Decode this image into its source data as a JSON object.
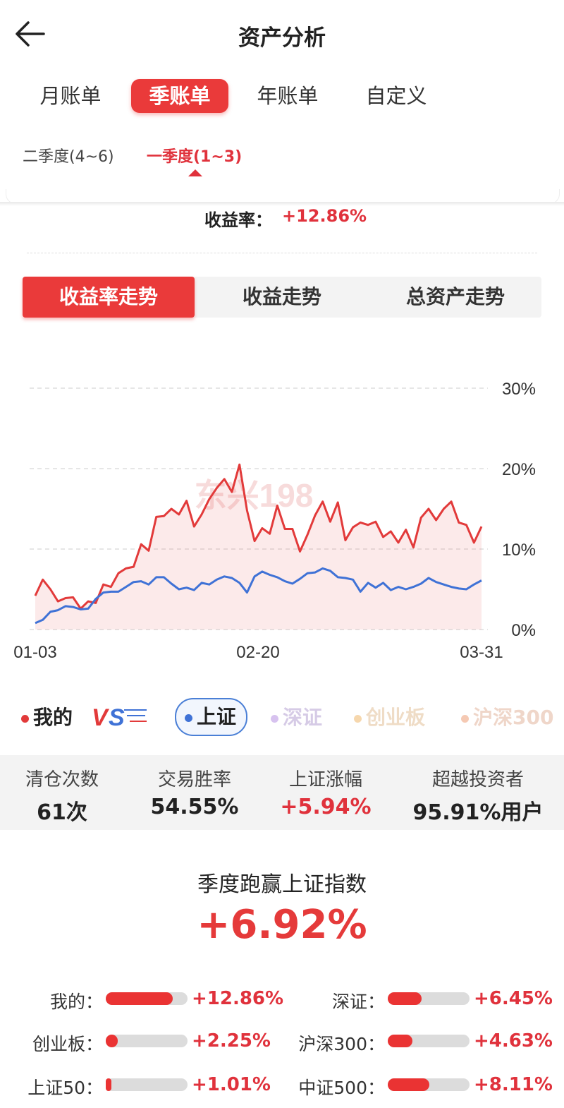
{
  "header": {
    "title": "资产分析",
    "back_icon": "arrow-left-icon"
  },
  "period_tabs": [
    {
      "label": "月账单",
      "active": false
    },
    {
      "label": "季账单",
      "active": true
    },
    {
      "label": "年账单",
      "active": false
    },
    {
      "label": "自定义",
      "active": false
    }
  ],
  "quarter_tabs": [
    {
      "label": "二季度(4~6)",
      "active": false
    },
    {
      "label": "一季度(1~3)",
      "active": true
    }
  ],
  "return_rate": {
    "label": "收益率：",
    "value": "+12.86%"
  },
  "chart_tabs": [
    {
      "label": "收益率走势",
      "active": true
    },
    {
      "label": "收益走势",
      "active": false
    },
    {
      "label": "总资产走势",
      "active": false
    }
  ],
  "chart_data": {
    "type": "line",
    "x_ticks": [
      "01-03",
      "02-20",
      "03-31"
    ],
    "y_ticks": [
      "30%",
      "20%",
      "10%",
      "0%"
    ],
    "ylim": [
      0,
      30
    ],
    "grid": true,
    "series": [
      {
        "name": "我的",
        "color": "#e23a3a",
        "values": [
          4.2,
          6.2,
          5.0,
          3.5,
          3.9,
          4.0,
          2.6,
          3.5,
          3.3,
          5.6,
          5.3,
          7.0,
          7.6,
          7.8,
          10.6,
          9.8,
          14.0,
          14.1,
          15.0,
          14.3,
          16.0,
          12.8,
          14.3,
          16.2,
          17.6,
          18.7,
          17.1,
          20.5,
          14.8,
          11.0,
          12.6,
          11.9,
          15.4,
          12.5,
          12.5,
          9.7,
          11.8,
          14.2,
          15.9,
          13.4,
          15.8,
          11.1,
          12.7,
          13.3,
          13.0,
          13.4,
          11.5,
          12.2,
          10.8,
          12.4,
          10.2,
          13.9,
          15.0,
          13.6,
          15.0,
          15.9,
          13.3,
          13.0,
          10.8,
          12.8
        ]
      },
      {
        "name": "上证",
        "color": "#3f72d6",
        "values": [
          0.8,
          1.2,
          2.2,
          2.4,
          2.9,
          2.8,
          2.5,
          2.6,
          3.8,
          4.6,
          4.7,
          4.7,
          5.3,
          5.9,
          6.0,
          5.6,
          6.5,
          6.5,
          5.7,
          5.0,
          5.2,
          4.9,
          5.8,
          5.6,
          6.2,
          6.6,
          6.4,
          5.8,
          4.6,
          6.6,
          7.2,
          6.8,
          6.5,
          6.0,
          5.7,
          6.3,
          7.0,
          7.1,
          7.6,
          7.3,
          6.5,
          6.4,
          6.2,
          4.7,
          5.8,
          5.2,
          5.8,
          4.9,
          5.3,
          5.0,
          5.3,
          5.7,
          6.4,
          5.9,
          5.6,
          5.3,
          5.1,
          5.0,
          5.6,
          6.1
        ]
      }
    ],
    "watermark": "东兴198"
  },
  "legend": [
    {
      "label": "我的",
      "color": "#e23a3a",
      "active": true
    },
    {
      "label": "VS"
    },
    {
      "label": "上证",
      "color": "#3f72d6",
      "active": true
    },
    {
      "label": "深证",
      "color": "#d7c2ef",
      "active": false
    },
    {
      "label": "创业板",
      "color": "#f6d7ad",
      "active": false
    },
    {
      "label": "沪深300",
      "color": "#f5c9b3",
      "active": false
    }
  ],
  "stats": [
    {
      "label": "清仓次数",
      "value": "61次",
      "red": false
    },
    {
      "label": "交易胜率",
      "value": "54.55%",
      "red": false
    },
    {
      "label": "上证涨幅",
      "value": "+5.94%",
      "red": true
    },
    {
      "label": "超越投资者",
      "value": "95.91%用户",
      "red": false
    }
  ],
  "outperform": {
    "title": "季度跑赢上证指数",
    "value": "+6.92%"
  },
  "comparisons": [
    {
      "label": "我的：",
      "value": "+12.86%",
      "fill": 0.82
    },
    {
      "label": "深证：",
      "value": "+6.45%",
      "fill": 0.41
    },
    {
      "label": "创业板：",
      "value": "+2.25%",
      "fill": 0.15
    },
    {
      "label": "沪深300：",
      "value": "+4.63%",
      "fill": 0.3
    },
    {
      "label": "上证50：",
      "value": "+1.01%",
      "fill": 0.07
    },
    {
      "label": "中证500：",
      "value": "+8.11%",
      "fill": 0.51
    }
  ]
}
